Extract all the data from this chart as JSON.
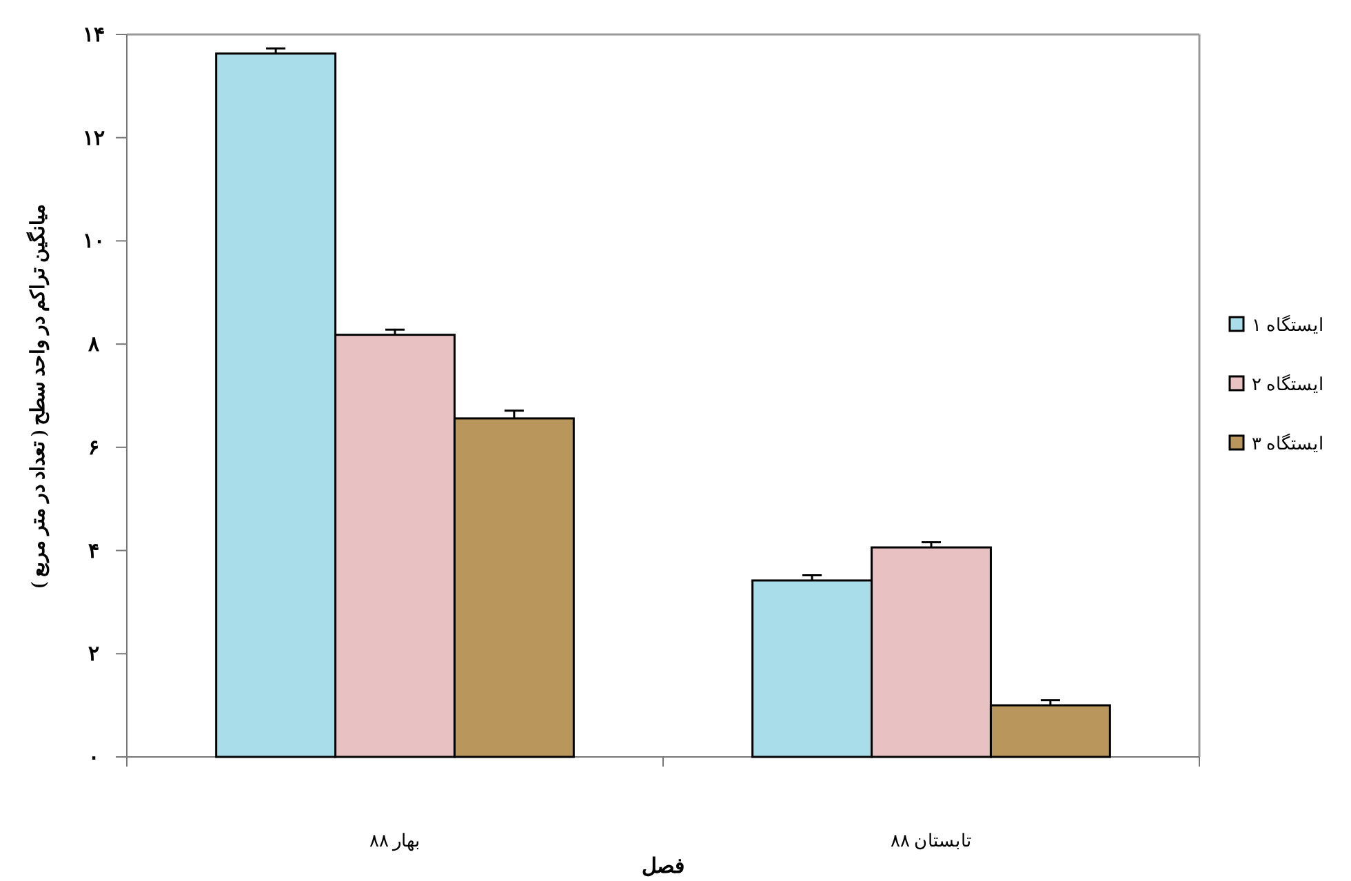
{
  "chart_data": {
    "type": "bar",
    "categories": [
      "بهار ۸۸",
      "تابستان ۸۸"
    ],
    "series": [
      {
        "name": "ایستگاه ۱",
        "color": "#a9dde9",
        "values": [
          13.63,
          3.42
        ],
        "errors": [
          0.1,
          0.1
        ]
      },
      {
        "name": "ایستگاه ۲",
        "color": "#e8c1c3",
        "values": [
          8.18,
          4.06
        ],
        "errors": [
          0.1,
          0.1
        ]
      },
      {
        "name": "ایستگاه ۳",
        "color": "#b8965c",
        "values": [
          6.56,
          1.0
        ],
        "errors": [
          0.15,
          0.1
        ]
      }
    ],
    "xlabel": "فصل",
    "ylabel": "میانگین تراکم در واحد سطح ( تعداد در متر مربع )",
    "ylim": [
      0,
      14
    ],
    "yticks": [
      {
        "value": 0,
        "label": "۰"
      },
      {
        "value": 2,
        "label": "۲"
      },
      {
        "value": 4,
        "label": "۴"
      },
      {
        "value": 6,
        "label": "۶"
      },
      {
        "value": 8,
        "label": "۸"
      },
      {
        "value": 10,
        "label": "۱۰"
      },
      {
        "value": 12,
        "label": "۱۲"
      },
      {
        "value": 14,
        "label": "۱۴"
      }
    ],
    "legend": "right"
  }
}
